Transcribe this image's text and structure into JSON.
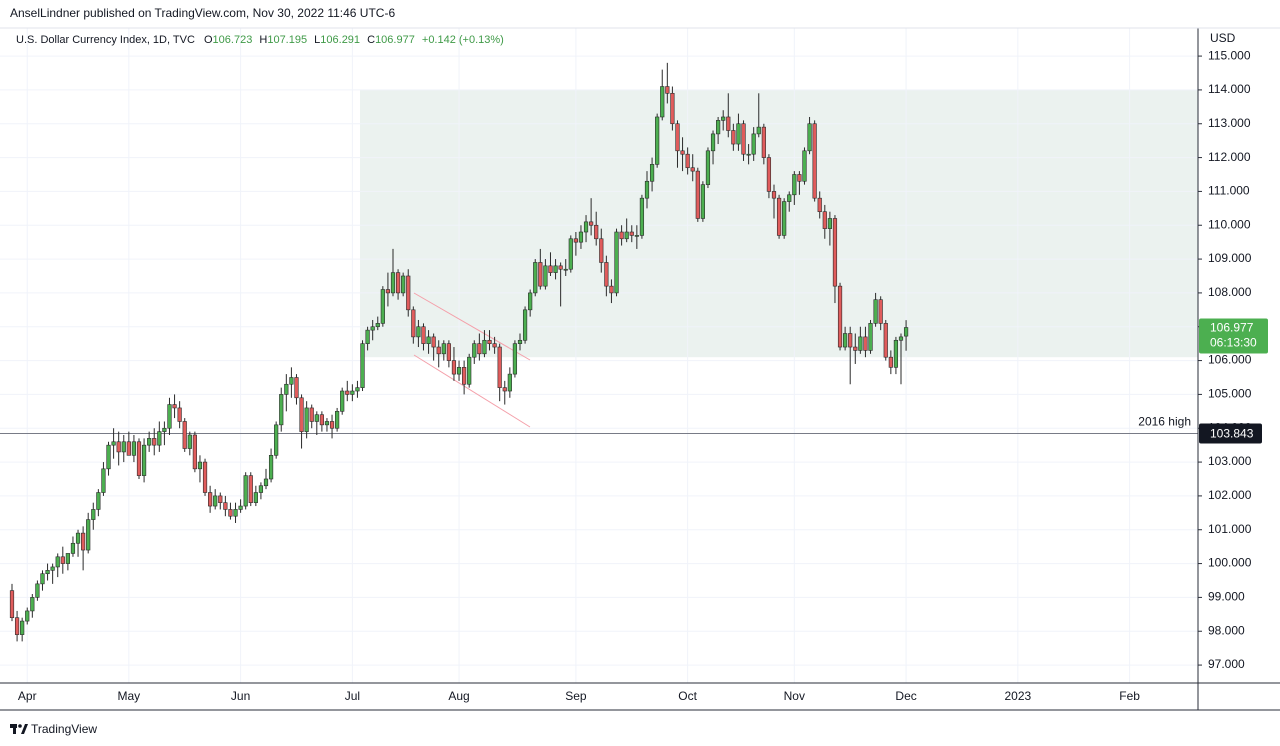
{
  "header": {
    "publisher": "AnselLindner published on TradingView.com, Nov 30, 2022 11:46 UTC-6",
    "brand": "TradingView"
  },
  "chart_data": {
    "type": "candlestick",
    "title": "U.S. Dollar Currency Index, 1D, TVC",
    "ohlc_labels": [
      "O",
      "H",
      "L",
      "C"
    ],
    "change_label": "+0.142 (+0.13%)",
    "currency": "USD",
    "categories": [
      null,
      null,
      null,
      "Apr",
      null,
      null,
      null,
      null,
      null,
      null,
      null,
      null,
      null,
      null,
      null,
      null,
      null,
      null,
      null,
      null,
      null,
      null,
      null,
      "May",
      null,
      null,
      null,
      null,
      null,
      null,
      null,
      null,
      null,
      null,
      null,
      null,
      null,
      null,
      null,
      null,
      null,
      null,
      null,
      null,
      null,
      "Jun",
      null,
      null,
      null,
      null,
      null,
      null,
      null,
      null,
      null,
      null,
      null,
      null,
      null,
      null,
      null,
      null,
      null,
      null,
      null,
      null,
      null,
      "Jul",
      null,
      null,
      null,
      null,
      null,
      null,
      null,
      null,
      null,
      null,
      null,
      null,
      null,
      null,
      null,
      null,
      null,
      null,
      null,
      null,
      "Aug",
      null,
      null,
      null,
      null,
      null,
      null,
      null,
      null,
      null,
      null,
      null,
      null,
      null,
      null,
      null,
      null,
      null,
      null,
      null,
      null,
      null,
      null,
      "Sep",
      null,
      null,
      null,
      null,
      null,
      null,
      null,
      null,
      null,
      null,
      null,
      null,
      null,
      null,
      null,
      null,
      null,
      null,
      null,
      null,
      null,
      "Oct",
      null,
      null,
      null,
      null,
      null,
      null,
      null,
      null,
      null,
      null,
      null,
      null,
      null,
      null,
      null,
      null,
      null,
      null,
      null,
      null,
      "Nov",
      null,
      null,
      null,
      null,
      null,
      null,
      null,
      null,
      null,
      null,
      null,
      null,
      null,
      null,
      null,
      null,
      null,
      null,
      null,
      null,
      null,
      "Dec",
      null,
      null,
      null,
      null,
      null,
      null,
      null,
      null,
      null,
      null,
      null,
      null,
      null,
      null,
      null,
      null,
      null,
      null,
      null,
      null,
      null,
      "2023",
      null,
      null,
      null,
      null,
      null,
      null,
      null,
      null,
      null,
      null,
      null,
      null,
      null,
      null,
      null,
      null,
      null,
      null,
      null,
      null,
      null,
      "Feb",
      null,
      null,
      null,
      null,
      null,
      null,
      null,
      null,
      null,
      null,
      null
    ],
    "candles": [
      [
        99.2,
        99.4,
        98.3,
        98.4
      ],
      [
        98.4,
        98.6,
        97.7,
        97.9
      ],
      [
        97.9,
        98.4,
        97.7,
        98.3
      ],
      [
        98.3,
        98.7,
        98.2,
        98.6
      ],
      [
        98.6,
        99.1,
        98.4,
        99.0
      ],
      [
        99.0,
        99.5,
        98.9,
        99.4
      ],
      [
        99.4,
        99.8,
        99.2,
        99.7
      ],
      [
        99.7,
        100.0,
        99.5,
        99.8
      ],
      [
        99.8,
        100.0,
        99.4,
        99.9
      ],
      [
        99.9,
        100.3,
        99.6,
        100.2
      ],
      [
        100.2,
        100.5,
        99.7,
        100.0
      ],
      [
        100.0,
        100.3,
        99.8,
        100.3
      ],
      [
        100.3,
        100.8,
        100.2,
        100.6
      ],
      [
        100.6,
        101.0,
        100.2,
        100.9
      ],
      [
        100.9,
        101.1,
        99.8,
        100.4
      ],
      [
        100.4,
        101.5,
        100.3,
        101.3
      ],
      [
        101.3,
        101.8,
        101.0,
        101.6
      ],
      [
        101.6,
        102.2,
        101.4,
        102.1
      ],
      [
        102.1,
        103.0,
        102.0,
        102.8
      ],
      [
        102.8,
        103.6,
        102.6,
        103.5
      ],
      [
        103.5,
        104.0,
        103.1,
        103.6
      ],
      [
        103.6,
        103.9,
        102.9,
        103.3
      ],
      [
        103.3,
        103.8,
        103.0,
        103.6
      ],
      [
        103.6,
        103.9,
        103.2,
        103.2
      ],
      [
        103.2,
        103.8,
        103.0,
        103.6
      ],
      [
        103.6,
        103.7,
        102.5,
        102.6
      ],
      [
        102.6,
        103.7,
        102.4,
        103.5
      ],
      [
        103.5,
        103.9,
        103.3,
        103.7
      ],
      [
        103.7,
        104.0,
        103.2,
        103.5
      ],
      [
        103.5,
        104.2,
        103.3,
        103.9
      ],
      [
        103.9,
        104.2,
        103.5,
        104.0
      ],
      [
        104.0,
        104.9,
        103.8,
        104.7
      ],
      [
        104.7,
        105.0,
        104.3,
        104.6
      ],
      [
        104.6,
        104.8,
        104.0,
        104.2
      ],
      [
        104.2,
        104.3,
        103.3,
        103.4
      ],
      [
        103.4,
        103.9,
        103.2,
        103.8
      ],
      [
        103.8,
        103.9,
        102.7,
        102.8
      ],
      [
        102.8,
        103.2,
        102.4,
        103.0
      ],
      [
        103.0,
        103.1,
        102.0,
        102.1
      ],
      [
        102.1,
        102.3,
        101.5,
        101.7
      ],
      [
        101.7,
        102.2,
        101.6,
        102.0
      ],
      [
        102.0,
        102.1,
        101.6,
        101.8
      ],
      [
        101.8,
        102.0,
        101.4,
        101.6
      ],
      [
        101.6,
        101.8,
        101.3,
        101.4
      ],
      [
        101.4,
        101.8,
        101.2,
        101.6
      ],
      [
        101.6,
        101.9,
        101.5,
        101.7
      ],
      [
        101.7,
        102.7,
        101.6,
        102.6
      ],
      [
        102.6,
        102.7,
        101.7,
        101.8
      ],
      [
        101.8,
        102.3,
        101.7,
        102.1
      ],
      [
        102.1,
        102.4,
        101.9,
        102.3
      ],
      [
        102.3,
        102.8,
        102.2,
        102.5
      ],
      [
        102.5,
        103.4,
        102.4,
        103.2
      ],
      [
        103.2,
        104.2,
        103.1,
        104.1
      ],
      [
        104.1,
        105.2,
        103.9,
        105.0
      ],
      [
        105.0,
        105.6,
        104.5,
        105.3
      ],
      [
        105.3,
        105.8,
        104.9,
        105.5
      ],
      [
        105.5,
        105.6,
        104.7,
        104.9
      ],
      [
        104.9,
        105.0,
        103.4,
        103.9
      ],
      [
        103.9,
        104.8,
        103.7,
        104.6
      ],
      [
        104.6,
        104.7,
        104.0,
        104.2
      ],
      [
        104.2,
        104.5,
        103.8,
        104.4
      ],
      [
        104.4,
        104.5,
        103.9,
        104.1
      ],
      [
        104.1,
        104.3,
        103.9,
        104.2
      ],
      [
        104.2,
        104.4,
        103.7,
        104.0
      ],
      [
        104.0,
        104.6,
        103.9,
        104.5
      ],
      [
        104.5,
        105.2,
        104.4,
        105.1
      ],
      [
        105.1,
        105.4,
        104.8,
        105.0
      ],
      [
        105.0,
        105.3,
        104.8,
        105.1
      ],
      [
        105.1,
        105.4,
        104.9,
        105.2
      ],
      [
        105.2,
        106.6,
        105.1,
        106.5
      ],
      [
        106.5,
        107.0,
        106.3,
        106.9
      ],
      [
        106.9,
        107.2,
        106.6,
        107.0
      ],
      [
        107.0,
        107.3,
        106.9,
        107.1
      ],
      [
        107.1,
        108.2,
        107.0,
        108.1
      ],
      [
        108.1,
        108.6,
        107.6,
        108.0
      ],
      [
        108.0,
        109.3,
        107.9,
        108.6
      ],
      [
        108.6,
        108.7,
        107.8,
        108.0
      ],
      [
        108.0,
        108.6,
        107.9,
        108.5
      ],
      [
        108.5,
        108.7,
        107.3,
        107.5
      ],
      [
        107.5,
        107.6,
        106.5,
        106.7
      ],
      [
        106.7,
        107.2,
        106.4,
        107.0
      ],
      [
        107.0,
        107.1,
        106.3,
        106.5
      ],
      [
        106.5,
        106.9,
        106.2,
        106.7
      ],
      [
        106.7,
        106.8,
        106.0,
        106.4
      ],
      [
        106.4,
        106.6,
        105.8,
        106.2
      ],
      [
        106.2,
        106.6,
        106.0,
        106.5
      ],
      [
        106.5,
        106.6,
        105.8,
        106.0
      ],
      [
        106.0,
        106.4,
        105.4,
        105.6
      ],
      [
        105.6,
        106.0,
        105.4,
        105.8
      ],
      [
        105.8,
        106.0,
        105.0,
        105.3
      ],
      [
        105.3,
        106.2,
        105.2,
        106.1
      ],
      [
        106.1,
        106.6,
        105.9,
        106.5
      ],
      [
        106.5,
        106.8,
        106.0,
        106.2
      ],
      [
        106.2,
        106.9,
        106.1,
        106.6
      ],
      [
        106.6,
        106.9,
        106.3,
        106.5
      ],
      [
        106.5,
        106.7,
        106.2,
        106.4
      ],
      [
        106.4,
        106.5,
        104.8,
        105.2
      ],
      [
        105.2,
        105.4,
        104.7,
        105.1
      ],
      [
        105.1,
        105.8,
        104.9,
        105.6
      ],
      [
        105.6,
        106.6,
        105.5,
        106.5
      ],
      [
        106.5,
        106.8,
        106.3,
        106.6
      ],
      [
        106.6,
        107.6,
        106.5,
        107.5
      ],
      [
        107.5,
        108.1,
        107.3,
        108.0
      ],
      [
        108.0,
        109.0,
        107.9,
        108.9
      ],
      [
        108.9,
        109.3,
        108.1,
        108.2
      ],
      [
        108.2,
        109.0,
        108.1,
        108.8
      ],
      [
        108.8,
        109.2,
        108.5,
        108.6
      ],
      [
        108.6,
        109.0,
        108.4,
        108.8
      ],
      [
        108.8,
        108.9,
        107.6,
        108.7
      ],
      [
        108.7,
        109.0,
        108.5,
        108.7
      ],
      [
        108.7,
        109.7,
        108.6,
        109.6
      ],
      [
        109.6,
        109.8,
        109.1,
        109.5
      ],
      [
        109.5,
        110.0,
        109.3,
        109.8
      ],
      [
        109.8,
        110.3,
        109.5,
        110.1
      ],
      [
        110.1,
        110.8,
        109.7,
        110.0
      ],
      [
        110.0,
        110.4,
        109.4,
        109.6
      ],
      [
        109.6,
        109.9,
        108.6,
        108.9
      ],
      [
        108.9,
        109.1,
        107.9,
        108.2
      ],
      [
        108.2,
        108.4,
        107.7,
        108.0
      ],
      [
        108.0,
        109.9,
        107.9,
        109.8
      ],
      [
        109.8,
        110.0,
        109.4,
        109.6
      ],
      [
        109.6,
        110.2,
        109.5,
        109.8
      ],
      [
        109.8,
        110.0,
        109.5,
        109.7
      ],
      [
        109.7,
        110.0,
        109.3,
        109.7
      ],
      [
        109.7,
        110.9,
        109.6,
        110.8
      ],
      [
        110.8,
        111.6,
        110.5,
        111.3
      ],
      [
        111.3,
        112.0,
        111.0,
        111.8
      ],
      [
        111.8,
        113.3,
        111.7,
        113.2
      ],
      [
        113.2,
        114.6,
        113.1,
        114.1
      ],
      [
        114.1,
        114.8,
        113.6,
        113.9
      ],
      [
        113.9,
        114.1,
        112.8,
        113.0
      ],
      [
        113.0,
        113.1,
        111.7,
        112.2
      ],
      [
        112.2,
        112.6,
        111.6,
        112.1
      ],
      [
        112.1,
        112.3,
        111.5,
        111.7
      ],
      [
        111.7,
        112.1,
        111.3,
        111.6
      ],
      [
        111.6,
        111.7,
        110.1,
        110.2
      ],
      [
        110.2,
        111.3,
        110.1,
        111.2
      ],
      [
        111.2,
        112.3,
        111.1,
        112.2
      ],
      [
        112.2,
        112.8,
        111.8,
        112.7
      ],
      [
        112.7,
        113.2,
        112.4,
        113.1
      ],
      [
        113.1,
        113.4,
        112.8,
        113.2
      ],
      [
        113.2,
        113.9,
        112.6,
        112.8
      ],
      [
        112.8,
        113.0,
        112.2,
        112.4
      ],
      [
        112.4,
        113.3,
        112.2,
        113.0
      ],
      [
        113.0,
        113.1,
        111.9,
        112.1
      ],
      [
        112.1,
        112.4,
        111.8,
        112.1
      ],
      [
        112.1,
        112.9,
        111.9,
        112.7
      ],
      [
        112.7,
        113.9,
        112.6,
        112.9
      ],
      [
        112.9,
        113.0,
        111.8,
        112.0
      ],
      [
        112.0,
        112.1,
        110.8,
        111.0
      ],
      [
        111.0,
        111.2,
        110.2,
        110.8
      ],
      [
        110.8,
        110.9,
        109.6,
        109.7
      ],
      [
        109.7,
        110.8,
        109.6,
        110.7
      ],
      [
        110.7,
        111.0,
        110.4,
        110.9
      ],
      [
        110.9,
        111.6,
        110.6,
        111.5
      ],
      [
        111.5,
        111.6,
        110.9,
        111.3
      ],
      [
        111.3,
        112.3,
        111.2,
        112.2
      ],
      [
        112.2,
        113.2,
        112.1,
        113.0
      ],
      [
        113.0,
        113.1,
        110.7,
        110.8
      ],
      [
        110.8,
        111.0,
        110.2,
        110.4
      ],
      [
        110.4,
        110.6,
        109.6,
        109.9
      ],
      [
        109.9,
        110.4,
        109.4,
        110.2
      ],
      [
        110.2,
        110.3,
        107.7,
        108.2
      ],
      [
        108.2,
        108.3,
        106.3,
        106.4
      ],
      [
        106.4,
        107.0,
        106.3,
        106.8
      ],
      [
        106.8,
        107.0,
        105.3,
        106.4
      ],
      [
        106.4,
        106.8,
        105.9,
        106.3
      ],
      [
        106.3,
        107.0,
        106.2,
        106.7
      ],
      [
        106.7,
        107.0,
        106.1,
        106.3
      ],
      [
        106.3,
        107.2,
        106.2,
        107.1
      ],
      [
        107.1,
        108.0,
        107.0,
        107.8
      ],
      [
        107.8,
        107.9,
        106.9,
        107.1
      ],
      [
        107.1,
        107.2,
        106.0,
        106.1
      ],
      [
        106.1,
        106.3,
        105.6,
        105.8
      ],
      [
        105.8,
        106.7,
        105.6,
        106.6
      ],
      [
        106.6,
        106.8,
        105.3,
        106.7
      ],
      [
        106.723,
        107.195,
        106.291,
        106.977
      ],
      null,
      null,
      null,
      null,
      null,
      null,
      null,
      null,
      null,
      null,
      null,
      null,
      null,
      null,
      null,
      null,
      null,
      null,
      null,
      null,
      null,
      null,
      null,
      null,
      null,
      null,
      null,
      null,
      null,
      null,
      null,
      null,
      null,
      null,
      null,
      null,
      null,
      null,
      null,
      null,
      null,
      null,
      null,
      null,
      null,
      null,
      null,
      null,
      null,
      null,
      null,
      null,
      null,
      null,
      null,
      null
    ],
    "up_color": "#4caf50",
    "down_color": "#e05c5c",
    "outline_color": "#2a2a2a",
    "ylim": [
      96.47,
      115.83
    ],
    "yticks": [
      {
        "value": 97,
        "label": "97.000"
      },
      {
        "value": 98,
        "label": "98.000"
      },
      {
        "value": 99,
        "label": "99.000"
      },
      {
        "value": 100,
        "label": "100.000"
      },
      {
        "value": 101,
        "label": "101.000"
      },
      {
        "value": 102,
        "label": "102.000"
      },
      {
        "value": 103,
        "label": "103.000"
      },
      {
        "value": 104,
        "label": "104.000"
      },
      {
        "value": 105,
        "label": "105.000"
      },
      {
        "value": 106,
        "label": "106.000"
      },
      {
        "value": 107,
        "label": "107.000"
      },
      {
        "value": 108,
        "label": "108.000"
      },
      {
        "value": 109,
        "label": "109.000"
      },
      {
        "value": 110,
        "label": "110.000"
      },
      {
        "value": 111,
        "label": "111.000"
      },
      {
        "value": 112,
        "label": "112.000"
      },
      {
        "value": 113,
        "label": "113.000"
      },
      {
        "value": 114,
        "label": "114.000"
      },
      {
        "value": 115,
        "label": "115.000"
      }
    ],
    "grid": true,
    "zone": {
      "range": [
        106.1,
        114.0
      ],
      "color": "#ebf2ef"
    },
    "hline": {
      "value": 103.843,
      "label": "2016 high",
      "color": "#787b86"
    },
    "countdown": "06:13:30",
    "last_price_color": "#4caf50"
  }
}
